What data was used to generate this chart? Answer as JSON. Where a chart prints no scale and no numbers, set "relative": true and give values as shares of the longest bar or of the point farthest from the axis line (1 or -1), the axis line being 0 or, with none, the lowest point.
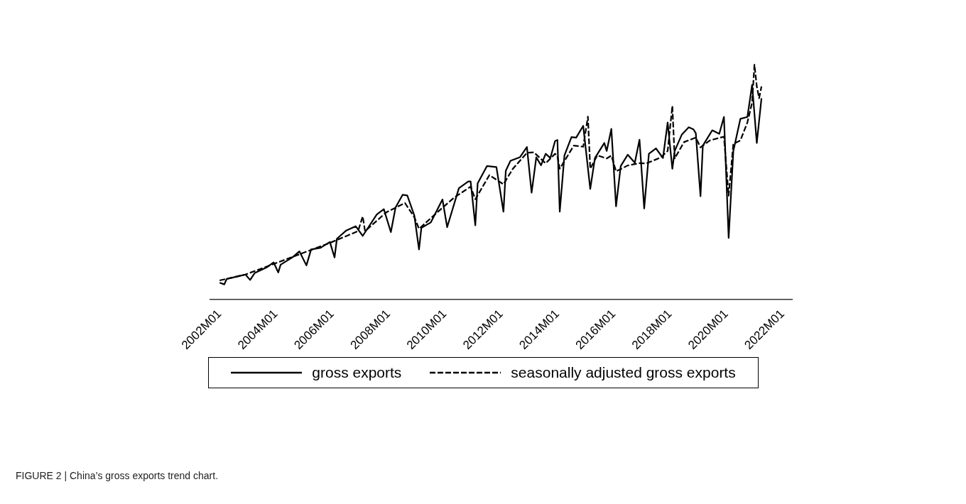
{
  "chart_data": {
    "type": "line",
    "relative": true,
    "legend": "bottom",
    "marker": "none",
    "grid": false,
    "annotations": [
      "FIGURE 2 | China’s gross exports trend chart."
    ],
    "xlim": [
      "2001-09",
      "2022-05"
    ],
    "xticks": [
      {
        "value": "2002-01",
        "label": "2002M01"
      },
      {
        "value": "2004-01",
        "label": "2004M01"
      },
      {
        "value": "2006-01",
        "label": "2006M01"
      },
      {
        "value": "2008-01",
        "label": "2008M01"
      },
      {
        "value": "2010-01",
        "label": "2010M01"
      },
      {
        "value": "2012-01",
        "label": "2012M01"
      },
      {
        "value": "2014-01",
        "label": "2014M01"
      },
      {
        "value": "2016-01",
        "label": "2016M01"
      },
      {
        "value": "2018-01",
        "label": "2018M01"
      },
      {
        "value": "2020-01",
        "label": "2020M01"
      },
      {
        "value": "2022-01",
        "label": "2022M01"
      }
    ],
    "series": [
      {
        "name": "gross exports",
        "color": "#000000",
        "line_style": "solid",
        "x": [
          "2002-01",
          "2002-03",
          "2002-04",
          "2002-09",
          "2002-12",
          "2003-02",
          "2003-04",
          "2003-09",
          "2003-12",
          "2004-02",
          "2004-03",
          "2004-08",
          "2004-11",
          "2005-02",
          "2005-04",
          "2005-08",
          "2005-12",
          "2006-02",
          "2006-03",
          "2006-07",
          "2006-11",
          "2007-02",
          "2007-08",
          "2007-11",
          "2008-02",
          "2008-04",
          "2008-07",
          "2008-09",
          "2008-12",
          "2009-02",
          "2009-03",
          "2009-07",
          "2009-12",
          "2010-02",
          "2010-07",
          "2010-11",
          "2010-12",
          "2011-02",
          "2011-03",
          "2011-07",
          "2011-11",
          "2012-02",
          "2012-03",
          "2012-05",
          "2012-09",
          "2012-12",
          "2013-02",
          "2013-04",
          "2013-06",
          "2013-08",
          "2013-10",
          "2013-12",
          "2014-01",
          "2014-02",
          "2014-04",
          "2014-07",
          "2014-09",
          "2014-12",
          "2015-03",
          "2015-05",
          "2015-09",
          "2015-10",
          "2015-12",
          "2016-02",
          "2016-04",
          "2016-07",
          "2016-10",
          "2016-12",
          "2017-02",
          "2017-04",
          "2017-07",
          "2017-10",
          "2017-12",
          "2018-02",
          "2018-03",
          "2018-06",
          "2018-09",
          "2018-11",
          "2018-12",
          "2019-02",
          "2019-03",
          "2019-07",
          "2019-10",
          "2019-12",
          "2020-02",
          "2020-04",
          "2020-07",
          "2020-10",
          "2020-12",
          "2021-02",
          "2021-04"
        ],
        "values": [
          0.07,
          0.063,
          0.086,
          0.098,
          0.105,
          0.082,
          0.112,
          0.135,
          0.157,
          0.114,
          0.147,
          0.178,
          0.204,
          0.144,
          0.212,
          0.219,
          0.244,
          0.178,
          0.258,
          0.293,
          0.311,
          0.27,
          0.361,
          0.384,
          0.286,
          0.391,
          0.445,
          0.442,
          0.357,
          0.212,
          0.304,
          0.327,
          0.425,
          0.307,
          0.473,
          0.502,
          0.502,
          0.315,
          0.494,
          0.568,
          0.563,
          0.373,
          0.548,
          0.59,
          0.605,
          0.649,
          0.454,
          0.605,
          0.571,
          0.62,
          0.602,
          0.674,
          0.679,
          0.373,
          0.613,
          0.691,
          0.689,
          0.739,
          0.47,
          0.602,
          0.666,
          0.632,
          0.726,
          0.396,
          0.568,
          0.616,
          0.582,
          0.68,
          0.387,
          0.62,
          0.643,
          0.602,
          0.753,
          0.556,
          0.632,
          0.701,
          0.733,
          0.724,
          0.708,
          0.439,
          0.655,
          0.72,
          0.705,
          0.777,
          0.261,
          0.632,
          0.769,
          0.777,
          0.914,
          0.666,
          0.857
        ]
      },
      {
        "name": "seasonally adjusted gross exports",
        "color": "#000000",
        "line_style": "dashed",
        "x": [
          "2002-01",
          "2002-12",
          "2003-12",
          "2004-12",
          "2005-12",
          "2006-12",
          "2007-02",
          "2007-03",
          "2007-12",
          "2008-08",
          "2008-12",
          "2009-02",
          "2009-12",
          "2010-05",
          "2010-12",
          "2011-02",
          "2011-08",
          "2012-02",
          "2012-06",
          "2012-12",
          "2013-03",
          "2013-08",
          "2013-12",
          "2014-01",
          "2014-02",
          "2014-08",
          "2014-12",
          "2015-02",
          "2015-03",
          "2015-06",
          "2015-10",
          "2015-12",
          "2016-02",
          "2016-07",
          "2016-12",
          "2017-03",
          "2017-09",
          "2017-12",
          "2018-02",
          "2018-03",
          "2018-07",
          "2018-12",
          "2019-02",
          "2019-06",
          "2019-12",
          "2020-02",
          "2020-04",
          "2020-07",
          "2020-10",
          "2020-12",
          "2021-01",
          "2021-02",
          "2021-03",
          "2021-04"
        ],
        "values": [
          0.08,
          0.105,
          0.15,
          0.195,
          0.24,
          0.29,
          0.353,
          0.29,
          0.37,
          0.41,
          0.35,
          0.3,
          0.39,
          0.433,
          0.48,
          0.426,
          0.529,
          0.49,
          0.556,
          0.624,
          0.626,
          0.579,
          0.62,
          0.61,
          0.556,
          0.655,
          0.65,
          0.778,
          0.556,
          0.613,
          0.6,
          0.612,
          0.545,
          0.57,
          0.58,
          0.579,
          0.604,
          0.632,
          0.824,
          0.6,
          0.67,
          0.689,
          0.647,
          0.677,
          0.693,
          0.441,
          0.662,
          0.677,
          0.754,
          0.838,
          1.0,
          0.907,
          0.857,
          0.907
        ]
      }
    ]
  }
}
